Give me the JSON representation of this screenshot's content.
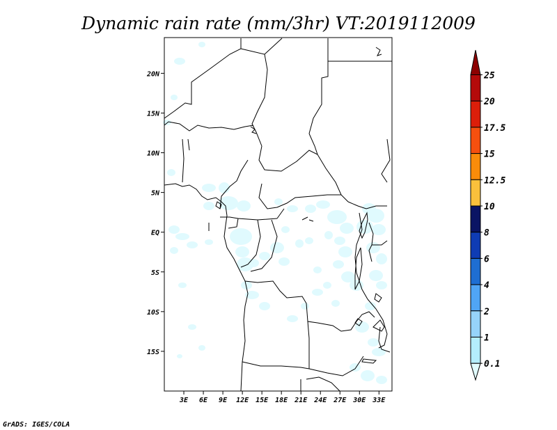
{
  "title": "Dynamic rain rate (mm/3hr) VT:2019112009",
  "credit": "GrADS: IGES/COLA",
  "map": {
    "lat_labels": [
      "20N",
      "15N",
      "10N",
      "5N",
      "EQ",
      "5S",
      "10S",
      "15S"
    ],
    "lat_values": [
      20,
      15,
      10,
      5,
      0,
      -5,
      -10,
      -15
    ],
    "lon_labels": [
      "3E",
      "6E",
      "9E",
      "12E",
      "15E",
      "18E",
      "21E",
      "24E",
      "27E",
      "30E",
      "33E"
    ],
    "lon_values": [
      3,
      6,
      9,
      12,
      15,
      18,
      21,
      24,
      27,
      30,
      33
    ],
    "extent": {
      "lon_min": 0,
      "lon_max": 35,
      "lat_min": -20,
      "lat_max": 24.5
    },
    "rain_color": "#e0fafe",
    "border_color": "#000000"
  },
  "colorbar": {
    "labels": [
      "0.1",
      "1",
      "2",
      "4",
      "6",
      "8",
      "10",
      "12.5",
      "15",
      "17.5",
      "20",
      "25"
    ],
    "colors": [
      "#e1fcfe",
      "#b4eefd",
      "#96d3fa",
      "#50a5f5",
      "#1e6ed2",
      "#0f3cb4",
      "#0a1464",
      "#fac03c",
      "#fa8c0a",
      "#f5500f",
      "#dc1e0a",
      "#b40a0a",
      "#8c0000"
    ]
  }
}
